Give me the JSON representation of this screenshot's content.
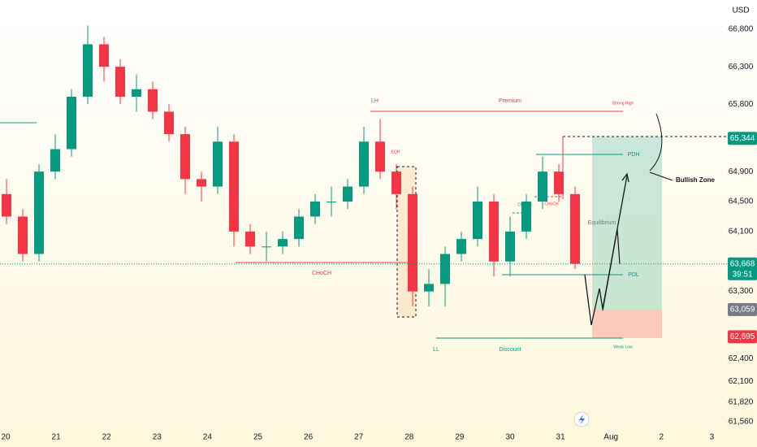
{
  "chart_data": {
    "type": "candlestick",
    "currency": "USD",
    "categories": [
      "20",
      "21",
      "22",
      "23",
      "24",
      "25",
      "26",
      "27",
      "28",
      "29",
      "30",
      "31",
      "Aug",
      "2",
      "3"
    ],
    "candles": [
      [
        64600,
        64800,
        64200,
        64300
      ],
      [
        64300,
        64400,
        63700,
        63800
      ],
      [
        63800,
        65000,
        63700,
        64900
      ],
      [
        64900,
        65400,
        64800,
        65200
      ],
      [
        65200,
        66000,
        65100,
        65900
      ],
      [
        65900,
        66850,
        65800,
        66600
      ],
      [
        66600,
        66700,
        66100,
        66300
      ],
      [
        66300,
        66400,
        65800,
        65900
      ],
      [
        65900,
        66200,
        65700,
        66000
      ],
      [
        66000,
        66100,
        65600,
        65700
      ],
      [
        65700,
        65800,
        65300,
        65400
      ],
      [
        65400,
        65500,
        64600,
        64800
      ],
      [
        64800,
        64900,
        64500,
        64700
      ],
      [
        64700,
        65500,
        64600,
        65300
      ],
      [
        65300,
        65400,
        63900,
        64100
      ],
      [
        64100,
        64200,
        63800,
        63900
      ],
      [
        63900,
        64100,
        63700,
        63900
      ],
      [
        63900,
        64100,
        63800,
        64000
      ],
      [
        64000,
        64400,
        63900,
        64300
      ],
      [
        64300,
        64600,
        64200,
        64500
      ],
      [
        64500,
        64700,
        64300,
        64500
      ],
      [
        64500,
        64800,
        64400,
        64700
      ],
      [
        64700,
        65500,
        64600,
        65300
      ],
      [
        65300,
        65600,
        64800,
        64900
      ],
      [
        64900,
        65000,
        64400,
        64600
      ],
      [
        64600,
        64700,
        63100,
        63300
      ],
      [
        63300,
        63600,
        63100,
        63400
      ],
      [
        63400,
        63900,
        63100,
        63800
      ],
      [
        63800,
        64100,
        63700,
        64000
      ],
      [
        64000,
        64700,
        63900,
        64500
      ],
      [
        64500,
        64600,
        63500,
        63700
      ],
      [
        63700,
        64300,
        63500,
        64100
      ],
      [
        64100,
        64600,
        64000,
        64500
      ],
      [
        64500,
        65100,
        64400,
        64900
      ],
      [
        64900,
        65000,
        64500,
        64600
      ],
      [
        64600,
        64700,
        63600,
        63668
      ]
    ],
    "ylim": [
      61245,
      67191
    ],
    "yticks": [
      {
        "value": 61560,
        "label": "61,560"
      },
      {
        "value": 61820,
        "label": "61,820"
      },
      {
        "value": 62100,
        "label": "62,100"
      },
      {
        "value": 62400,
        "label": "62,400"
      },
      {
        "value": 63300,
        "label": "63,300"
      },
      {
        "value": 64100,
        "label": "64,100"
      },
      {
        "value": 64500,
        "label": "64,500"
      },
      {
        "value": 64900,
        "label": "64,900"
      },
      {
        "value": 65800,
        "label": "65,800"
      },
      {
        "value": 66300,
        "label": "66,300"
      },
      {
        "value": 66800,
        "label": "66,800"
      }
    ],
    "price_labels": [
      {
        "value": 65344,
        "label": "65,344",
        "color": "#089981"
      },
      {
        "value": 63668,
        "label": "63,668",
        "color": "#089981"
      },
      {
        "value": 63059,
        "label": "63,059",
        "color": "#787b86"
      },
      {
        "value": 62695,
        "label": "62,695",
        "color": "#f23645"
      }
    ],
    "countdown": "39:51",
    "up_color": "#089981",
    "down_color": "#f23645",
    "annotations": [
      "LH",
      "Premium",
      "Strong High",
      "EQH",
      "CHoCH",
      "CHoCH",
      "CHoCH",
      "Equilibrium",
      "PDH",
      "PDL",
      "LL",
      "Discount",
      "Weak Low",
      "Bullish Zone"
    ]
  }
}
